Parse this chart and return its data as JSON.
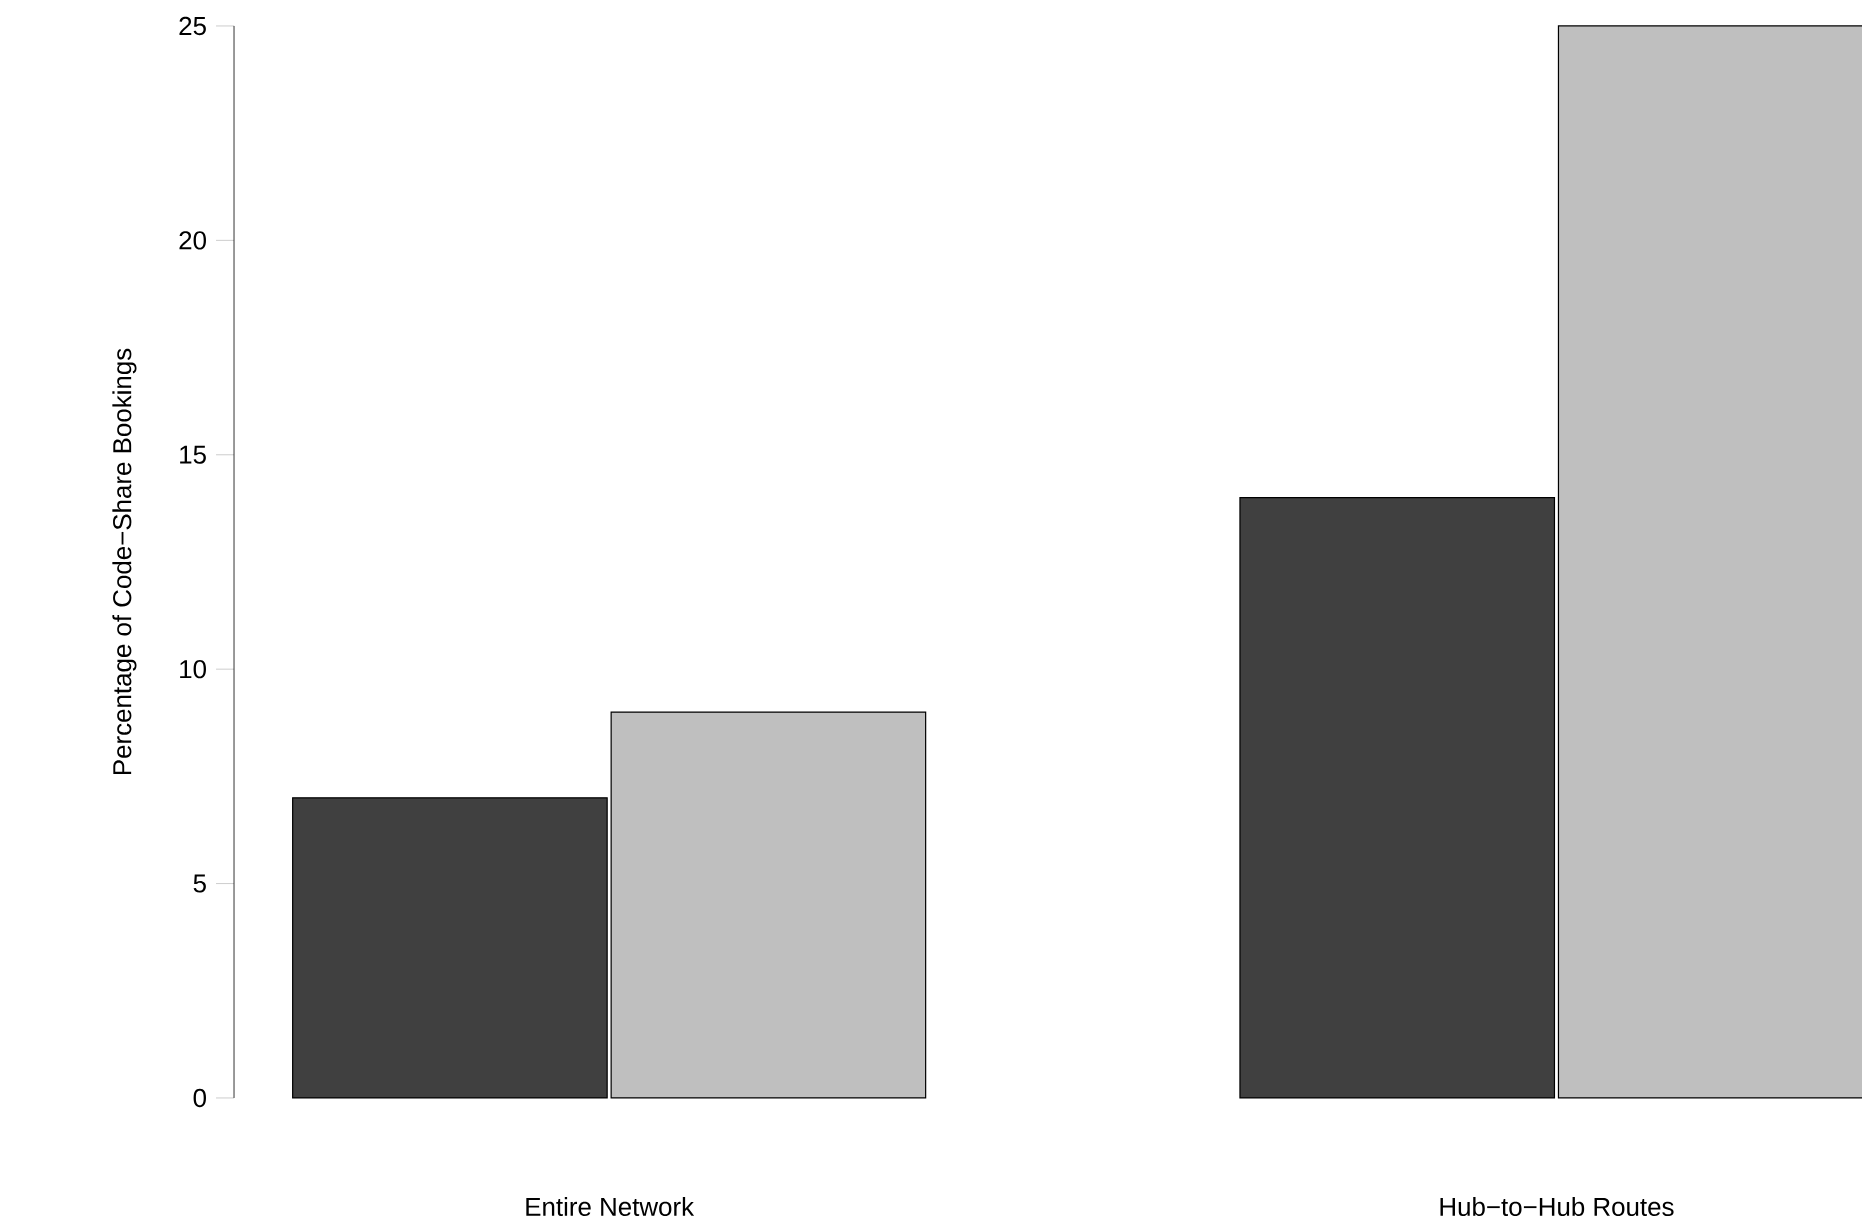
{
  "chart_data": {
    "type": "bar",
    "ylabel": "Percentage of Code−Share Bookings",
    "categories": [
      "Entire Network",
      "Hub−to−Hub Routes"
    ],
    "series": [
      {
        "color": "#404040",
        "values": [
          7,
          14
        ]
      },
      {
        "color": "#bfbfbf",
        "values": [
          9,
          25
        ]
      }
    ],
    "ylim": [
      0,
      25
    ],
    "yticks": [
      0,
      5,
      10,
      15,
      20,
      25
    ]
  }
}
